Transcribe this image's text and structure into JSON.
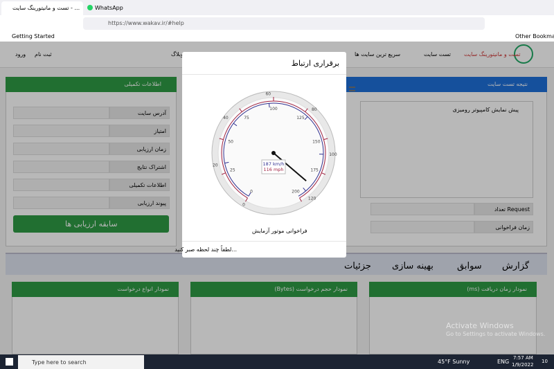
{
  "browser": {
    "tabs": [
      "تست و مانیتورینگ سایت - ...",
      "WhatsApp"
    ],
    "url": "https://www.wakav.ir/#help",
    "bookmarks": [
      "Getting Started"
    ],
    "other_bookmarks": "Other Bookmarks"
  },
  "site": {
    "logo_text": "تست و مانیتورینگ سایت",
    "nav": [
      "تست سایت",
      "سریع ترین سایت ها",
      "وبلاگ"
    ],
    "user_links": [
      "ثبت نام",
      "ورود"
    ]
  },
  "left_panel": {
    "title": "اطلاعات تکمیلی",
    "fields": [
      "آدرس سایت",
      "امتیاز",
      "زمان ارزیابی",
      "اشتراک نتایج",
      "اطلاعات تکمیلی",
      "پیوند ارزیابی"
    ],
    "button": "سابقه ارزیابی ها"
  },
  "right_panel": {
    "title": "نتیجه تست سایت",
    "preview": "پیش نمایش کامپیوتر رومیزی",
    "rows": [
      "تعداد Request",
      "زمان فراخوانی"
    ]
  },
  "report_tabs": [
    "گزارش",
    "سوابق",
    "بهینه سازی",
    "جزئیات"
  ],
  "cards": [
    "نمودار زمان دریافت (ms)",
    "نمودار حجم درخواست (Bytes)",
    "نمودار انواع درخواست"
  ],
  "modal": {
    "title": "برقراری ارتباط",
    "caption": "فراخوانی موتور آزمایش",
    "footer": "لطفاً چند لحظه صبر کنید...",
    "gauge": {
      "value": 187,
      "min": 0,
      "max": 200,
      "kmh_label": "187 km/h",
      "mph_label": "116 mph",
      "kmh_ticks": [
        0,
        25,
        50,
        75,
        100,
        125,
        150,
        175,
        200
      ],
      "mph_ticks": [
        0,
        20,
        40,
        60,
        80,
        100,
        120
      ]
    }
  },
  "watermark": {
    "title": "Activate Windows",
    "text": "Go to Settings to activate Windows."
  },
  "taskbar": {
    "search": "Type here to search",
    "weather": "45°F  Sunny",
    "lang": "ENG",
    "time": "7:57 AM",
    "date": "1/9/2022",
    "notifications": "10"
  }
}
